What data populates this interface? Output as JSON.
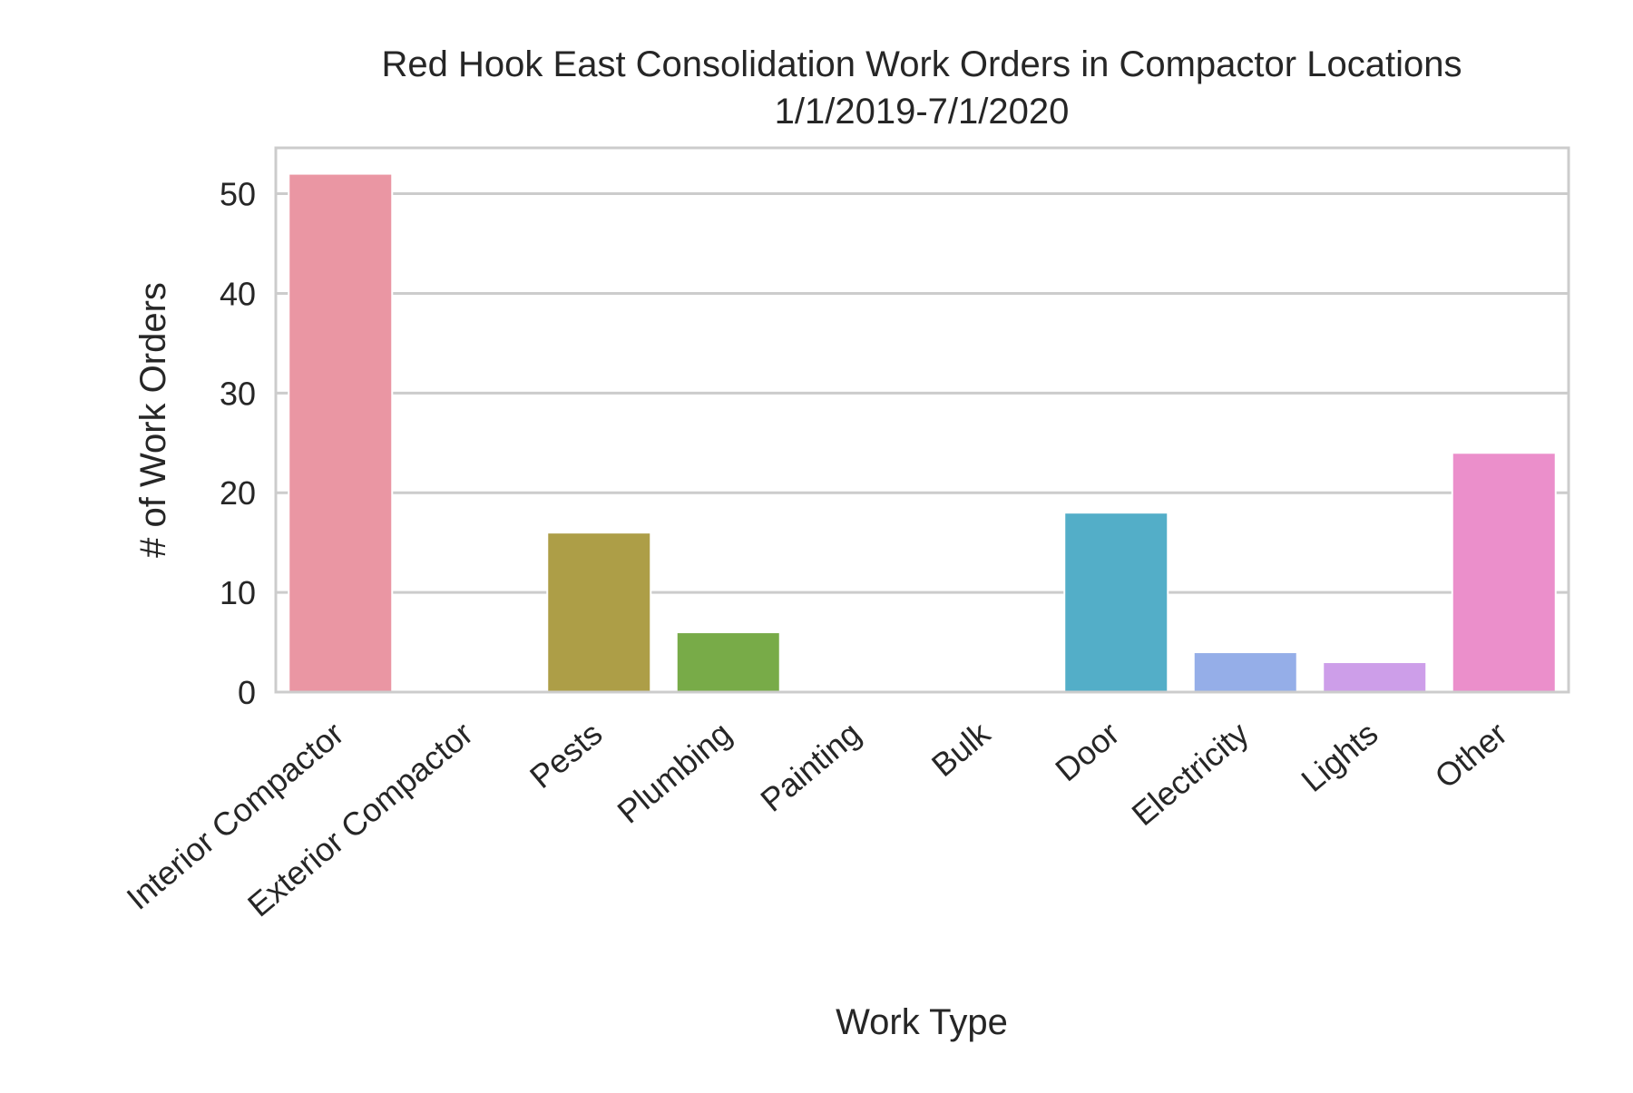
{
  "chart_data": {
    "type": "bar",
    "title": "Red Hook East Consolidation Work Orders in Compactor Locations",
    "subtitle": "1/1/2019-7/1/2020",
    "xlabel": "Work Type",
    "ylabel": "# of Work Orders",
    "categories": [
      "Interior Compactor",
      "Exterior Compactor",
      "Pests",
      "Plumbing",
      "Painting",
      "Bulk",
      "Door",
      "Electricity",
      "Lights",
      "Other"
    ],
    "values": [
      52,
      0,
      16,
      6,
      0,
      0,
      18,
      4,
      3,
      24
    ],
    "colors": [
      "#ea96a3",
      "#d8a07a",
      "#ad9e47",
      "#78ab48",
      "#50b17f",
      "#52ac9f",
      "#53aec8",
      "#95aee8",
      "#cd9ee9",
      "#eb8fcb"
    ],
    "ylim": [
      0,
      54.6
    ],
    "yticks": [
      0,
      10,
      20,
      30,
      40,
      50
    ],
    "grid": true,
    "gridColor": "#cccccc",
    "frameColor": "#cccccc"
  }
}
